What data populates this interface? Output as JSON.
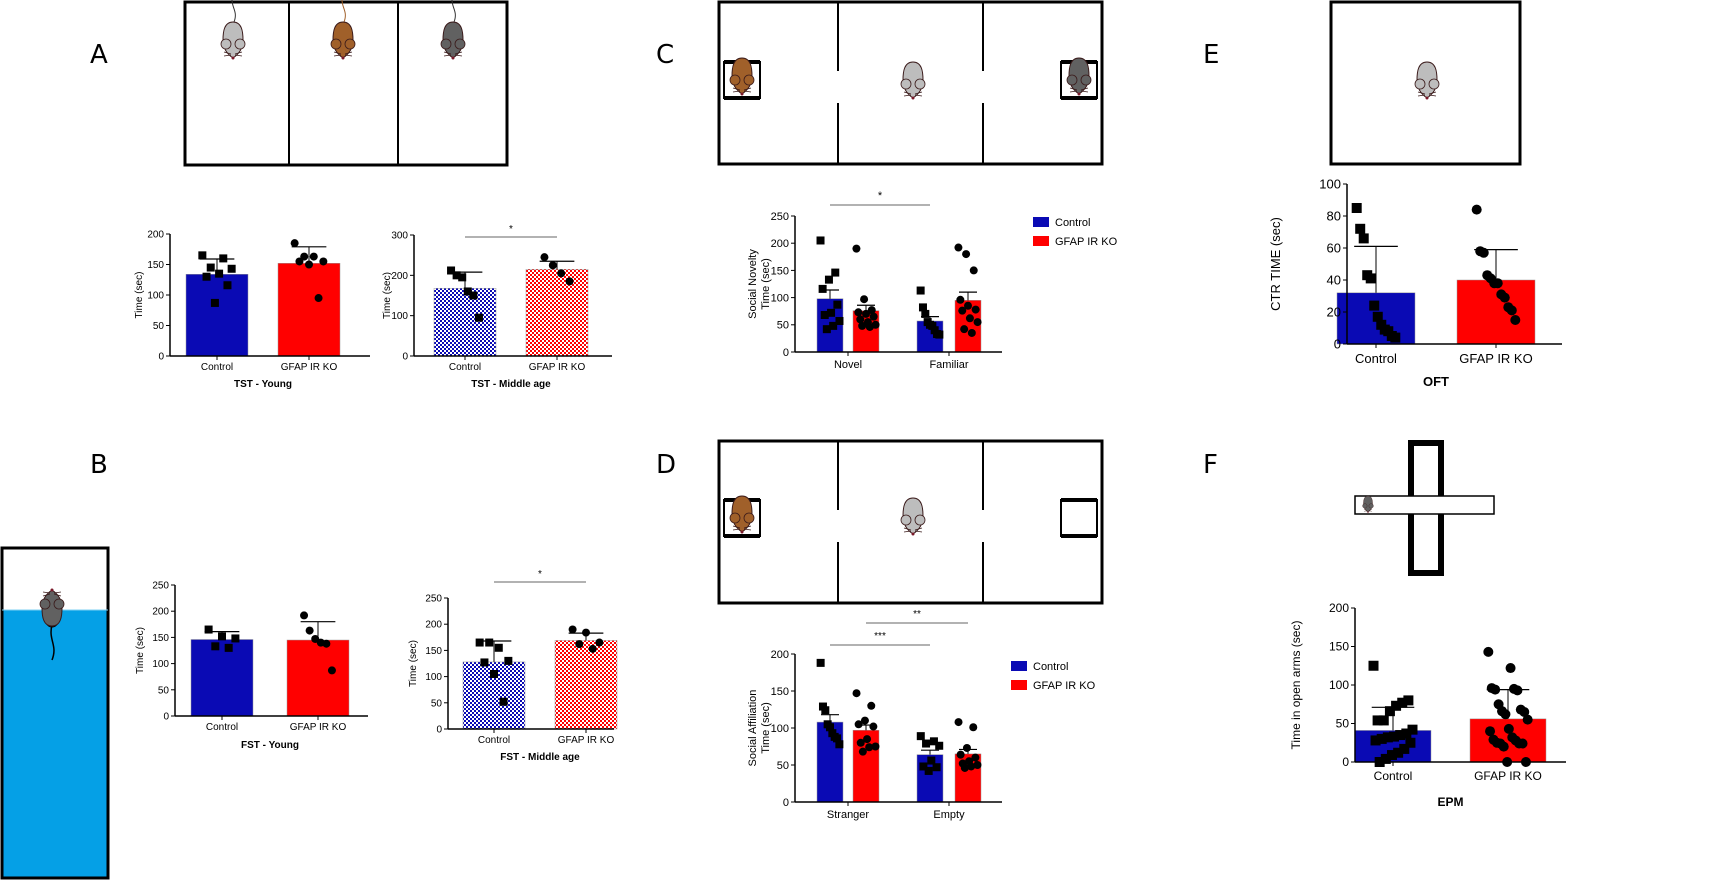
{
  "panels": {
    "A": "A",
    "B": "B",
    "C": "C",
    "D": "D",
    "E": "E",
    "F": "F"
  },
  "colors": {
    "control": "#0a0ab4",
    "ko": "#ff0000",
    "water": "#05a0e6",
    "mouse_light": "#bdbdbd",
    "mouse_brown": "#a0602a",
    "mouse_dark": "#616161"
  },
  "legend": {
    "control": "Control",
    "ko": "GFAP IR KO"
  },
  "chart_data": [
    {
      "id": "tst-young",
      "type": "bar",
      "title": "TST - Young",
      "ylabel": "Time (sec)",
      "ylim": [
        0,
        200
      ],
      "yticks": [
        0,
        50,
        100,
        150,
        200
      ],
      "categories": [
        "Control",
        "GFAP IR KO"
      ],
      "pattern": "solid",
      "values": [
        134,
        152
      ],
      "errors": [
        25,
        27
      ],
      "points": [
        [
          165,
          160,
          145,
          143,
          135,
          130,
          116,
          87
        ],
        [
          185,
          163,
          163,
          155,
          155,
          150,
          95
        ]
      ],
      "significance": []
    },
    {
      "id": "tst-middle",
      "type": "bar",
      "title": "TST - Middle age",
      "ylabel": "Time (sec)",
      "ylim": [
        0,
        300
      ],
      "yticks": [
        0,
        100,
        200,
        300
      ],
      "categories": [
        "Control",
        "GFAP IR KO"
      ],
      "pattern": "checker",
      "values": [
        168,
        215
      ],
      "errors": [
        40,
        20
      ],
      "points": [
        [
          212,
          200,
          195,
          160,
          150,
          95
        ],
        [
          245,
          225,
          205,
          185
        ]
      ],
      "significance": [
        {
          "from": 0,
          "to": 1,
          "label": "*"
        }
      ]
    },
    {
      "id": "fst-young",
      "type": "bar",
      "title": "FST - Young",
      "ylabel": "Time (sec)",
      "ylim": [
        0,
        250
      ],
      "yticks": [
        0,
        50,
        100,
        150,
        200,
        250
      ],
      "categories": [
        "Control",
        "GFAP IR KO"
      ],
      "pattern": "solid",
      "values": [
        146,
        145
      ],
      "errors": [
        15,
        35
      ],
      "points": [
        [
          165,
          152,
          148,
          133,
          130
        ],
        [
          192,
          163,
          147,
          140,
          138,
          87
        ]
      ],
      "significance": []
    },
    {
      "id": "fst-middle",
      "type": "bar",
      "title": "FST - Middle age",
      "ylabel": "Time (sec)",
      "ylim": [
        0,
        250
      ],
      "yticks": [
        0,
        50,
        100,
        150,
        200,
        250
      ],
      "categories": [
        "Control",
        "GFAP IR KO"
      ],
      "pattern": "checker",
      "values": [
        128,
        169
      ],
      "errors": [
        40,
        14
      ],
      "points": [
        [
          165,
          165,
          155,
          130,
          127,
          105,
          52
        ],
        [
          190,
          184,
          165,
          162,
          153
        ]
      ],
      "significance": [
        {
          "from": 0,
          "to": 1,
          "label": "*"
        }
      ]
    },
    {
      "id": "social-novelty",
      "type": "bar",
      "title": "",
      "ylabel": "Social Novelty\nTime (sec)",
      "ylim": [
        0,
        250
      ],
      "yticks": [
        0,
        50,
        100,
        150,
        200,
        250
      ],
      "categories": [
        "Novel",
        "Familiar"
      ],
      "series": [
        {
          "name": "Control",
          "values": [
            98,
            57
          ],
          "errors": [
            16,
            8
          ],
          "points": [
            [
              205,
              146,
              133,
              116,
              87,
              72,
              68,
              57,
              48,
              42
            ],
            [
              113,
              82,
              70,
              55,
              50,
              48,
              40,
              33,
              32
            ]
          ]
        },
        {
          "name": "GFAP IR KO",
          "values": [
            76,
            95
          ],
          "errors": [
            10,
            15
          ],
          "points": [
            [
              190,
              97,
              77,
              73,
              70,
              65,
              60,
              55,
              50,
              48,
              46
            ],
            [
              192,
              180,
              150,
              96,
              85,
              78,
              76,
              62,
              55,
              42,
              35
            ]
          ]
        }
      ],
      "legend_position": "right",
      "significance": [
        {
          "label": "*"
        }
      ]
    },
    {
      "id": "social-affiliation",
      "type": "bar",
      "title": "",
      "ylabel": "Social Affiliation\nTime (sec)",
      "ylim": [
        0,
        200
      ],
      "yticks": [
        0,
        50,
        100,
        150,
        200
      ],
      "categories": [
        "Stranger",
        "Empty"
      ],
      "series": [
        {
          "name": "Control",
          "values": [
            108,
            64
          ],
          "errors": [
            10,
            6
          ],
          "points": [
            [
              188,
              129,
              124,
              105,
              101,
              93,
              88,
              86,
              78
            ],
            [
              89,
              82,
              79,
              76,
              56,
              48,
              47,
              42
            ]
          ]
        },
        {
          "name": "GFAP IR KO",
          "values": [
            97,
            65
          ],
          "errors": [
            7,
            6
          ],
          "points": [
            [
              147,
              130,
              110,
              105,
              102,
              85,
              80,
              75,
              74,
              68
            ],
            [
              108,
              101,
              73,
              64,
              60,
              55,
              52,
              50,
              48,
              46
            ]
          ]
        }
      ],
      "legend_position": "right",
      "significance": [
        {
          "label": "***"
        },
        {
          "label": "**"
        }
      ]
    },
    {
      "id": "oft",
      "type": "bar",
      "title": "OFT",
      "ylabel": "CTR TIME (sec)",
      "ylim": [
        0,
        100
      ],
      "yticks": [
        0,
        20,
        40,
        60,
        80,
        100
      ],
      "categories": [
        "Control",
        "GFAP IR KO"
      ],
      "pattern": "solid",
      "values": [
        32,
        40
      ],
      "errors": [
        29,
        19
      ],
      "points": [
        [
          85,
          72,
          66,
          43,
          41,
          24,
          17,
          12,
          9,
          8,
          5,
          4
        ],
        [
          84,
          58,
          57,
          43,
          41,
          38,
          38,
          31,
          29,
          23,
          21,
          15
        ]
      ],
      "significance": []
    },
    {
      "id": "epm",
      "type": "bar",
      "title": "EPM",
      "ylabel": "Time in open arms (sec)",
      "ylim": [
        0,
        200
      ],
      "yticks": [
        0,
        50,
        100,
        150,
        200
      ],
      "categories": [
        "Control",
        "GFAP IR KO"
      ],
      "pattern": "solid",
      "values": [
        41,
        56
      ],
      "errors": [
        30,
        38
      ],
      "points": [
        [
          125,
          80,
          77,
          73,
          66,
          54,
          54,
          42,
          37,
          35,
          33,
          32,
          30,
          28,
          25,
          17,
          12,
          9,
          4,
          0
        ],
        [
          143,
          122,
          96,
          95,
          94,
          93,
          75,
          68,
          66,
          65,
          62,
          55,
          43,
          40,
          32,
          29,
          28,
          25,
          24,
          24,
          24,
          20,
          0,
          0
        ]
      ],
      "significance": []
    }
  ]
}
